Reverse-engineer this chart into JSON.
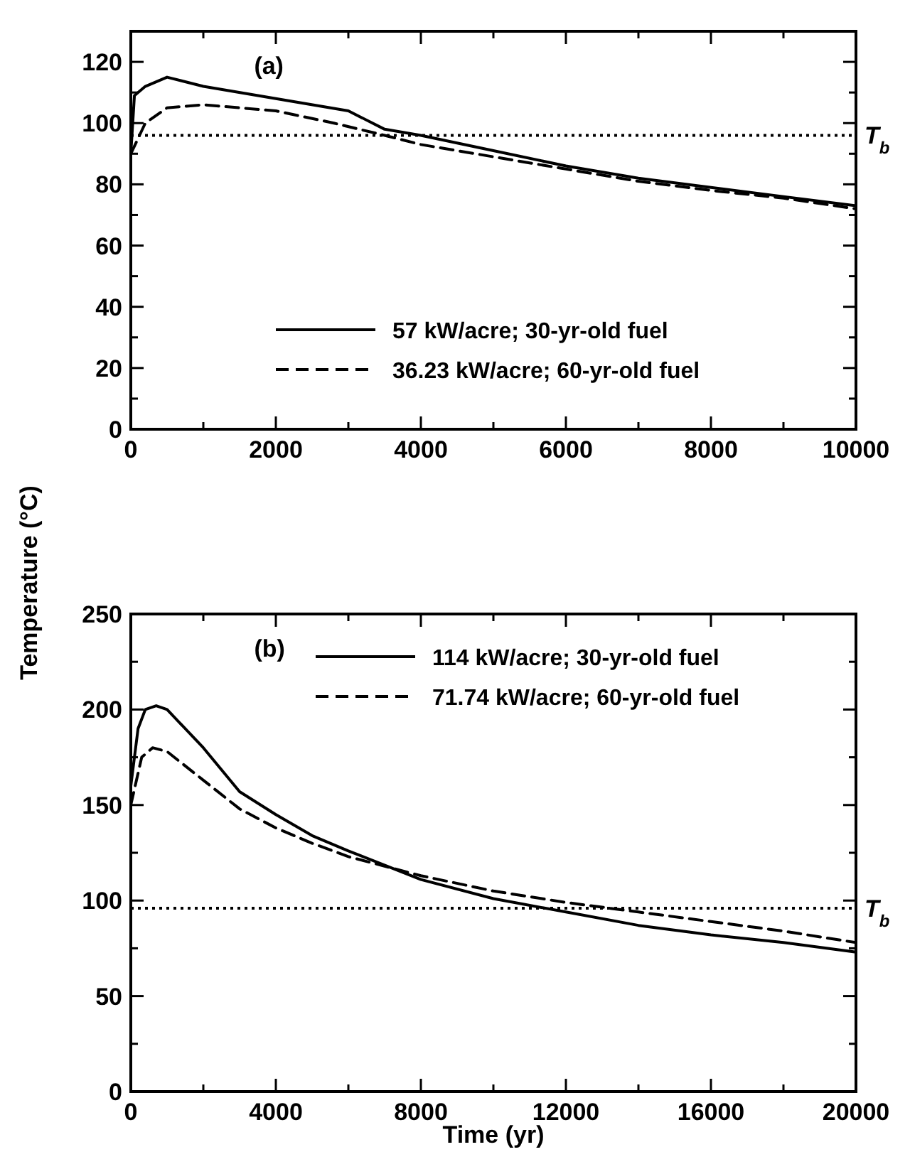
{
  "chart_data": [
    {
      "type": "line",
      "annotations": [
        "(a)"
      ],
      "ylabel": "Temperature (°C)",
      "xlim": [
        0,
        10000
      ],
      "ylim": [
        0,
        130
      ],
      "xticks": [
        0,
        {
          "value": 1000,
          "label": null
        },
        2000,
        {
          "value": 3000,
          "label": null
        },
        4000,
        {
          "value": 5000,
          "label": null
        },
        6000,
        {
          "value": 7000,
          "label": null
        },
        8000,
        {
          "value": 9000,
          "label": null
        },
        10000
      ],
      "yticks": [
        0,
        {
          "value": 10,
          "label": null
        },
        20,
        {
          "value": 30,
          "label": null
        },
        40,
        {
          "value": 50,
          "label": null
        },
        60,
        {
          "value": 70,
          "label": null
        },
        80,
        {
          "value": 90,
          "label": null
        },
        100,
        {
          "value": 110,
          "label": null
        },
        120,
        {
          "value": 130,
          "label": null
        }
      ],
      "legend": "bottom",
      "tick_labels": "xy",
      "ref_lines": [
        {
          "axis": "y",
          "value": 96,
          "label": "T$_{b}$",
          "line_style": "dotted",
          "color": "#000000"
        }
      ],
      "series": [
        {
          "name": "57 kW/acre; 30-yr-old fuel",
          "color": "#000000",
          "line_style": "solid",
          "x": [
            0,
            50,
            200,
            500,
            1000,
            2000,
            3000,
            3500,
            4000,
            5000,
            6000,
            7000,
            8000,
            9000,
            10000
          ],
          "values": [
            90,
            109,
            112,
            115,
            112,
            108,
            104,
            98,
            96,
            91,
            86,
            82,
            79,
            76,
            73
          ]
        },
        {
          "name": "36.23 kW/acre; 60-yr-old fuel",
          "color": "#000000",
          "line_style": "dashed",
          "x": [
            0,
            200,
            500,
            1000,
            2000,
            2800,
            3500,
            4000,
            5000,
            6000,
            7000,
            8000,
            9000,
            10000
          ],
          "values": [
            90,
            100,
            105,
            106,
            104,
            100,
            96,
            93,
            89,
            85,
            81,
            78,
            75.5,
            72
          ]
        }
      ]
    },
    {
      "type": "line",
      "annotations": [
        "(b)"
      ],
      "xlabel": "Time (yr)",
      "xlim": [
        0,
        20000
      ],
      "ylim": [
        0,
        250
      ],
      "xticks": [
        0,
        {
          "value": 2000,
          "label": null
        },
        4000,
        {
          "value": 6000,
          "label": null
        },
        8000,
        {
          "value": 10000,
          "label": null
        },
        12000,
        {
          "value": 14000,
          "label": null
        },
        16000,
        {
          "value": 18000,
          "label": null
        },
        20000
      ],
      "yticks": [
        0,
        {
          "value": 25,
          "label": null
        },
        50,
        {
          "value": 75,
          "label": null
        },
        100,
        {
          "value": 125,
          "label": null
        },
        150,
        {
          "value": 175,
          "label": null
        },
        200,
        {
          "value": 225,
          "label": null
        },
        250
      ],
      "legend": "top right",
      "ref_lines": [
        {
          "axis": "y",
          "value": 96,
          "label": "T$_{b}$",
          "line_style": "dotted",
          "color": "#000000"
        }
      ],
      "series": [
        {
          "name": "114 kW/acre; 30-yr-old fuel",
          "color": "#000000",
          "line_style": "solid",
          "x": [
            0,
            200,
            400,
            700,
            1000,
            2000,
            3000,
            4000,
            5000,
            6000,
            8000,
            10000,
            12000,
            14000,
            16000,
            18000,
            20000
          ],
          "values": [
            160,
            190,
            200,
            202,
            200,
            180,
            157,
            145,
            134,
            126,
            111,
            101,
            94,
            87,
            82,
            78,
            73
          ]
        },
        {
          "name": "71.74 kW/acre; 60-yr-old fuel",
          "color": "#000000",
          "line_style": "dashed",
          "x": [
            0,
            300,
            600,
            1000,
            2000,
            3000,
            4000,
            5000,
            6000,
            8000,
            10000,
            12000,
            14000,
            16000,
            18000,
            20000
          ],
          "values": [
            150,
            175,
            180,
            178,
            163,
            148,
            138,
            130,
            123,
            113,
            105,
            99,
            94,
            89,
            84,
            78
          ]
        }
      ]
    }
  ]
}
